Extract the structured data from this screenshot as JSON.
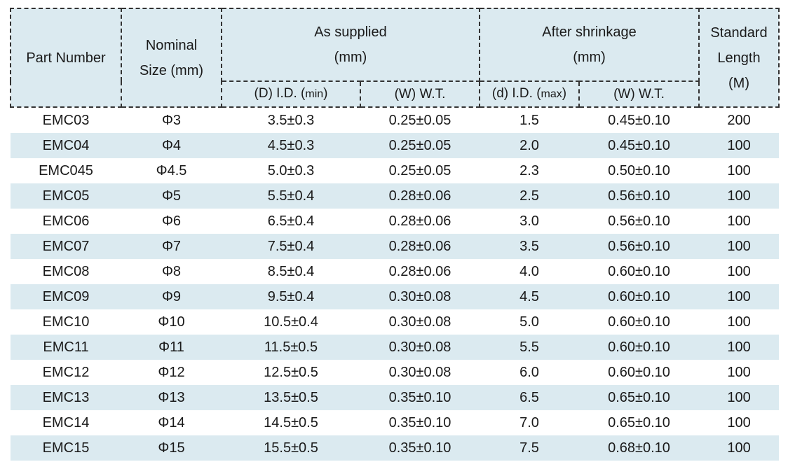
{
  "header": {
    "part_number": "Part Number",
    "nominal_size": [
      "Nominal",
      "Size (mm)"
    ],
    "as_supplied": [
      "As supplied",
      "(mm)"
    ],
    "after_shrinkage": [
      "After shrinkage",
      "(mm)"
    ],
    "standard_length": [
      "Standard",
      "Length",
      "(M)"
    ],
    "sub": {
      "supplied_id_prefix": "(D) I.D. (",
      "supplied_id_unit": "min",
      "supplied_id_suffix": ")",
      "supplied_wt": "(W) W.T.",
      "shrunk_id_prefix": "(d) I.D. (",
      "shrunk_id_unit": "max",
      "shrunk_id_suffix": ")",
      "shrunk_wt": "(W) W.T."
    }
  },
  "rows": [
    [
      "EMC03",
      "Φ3",
      "3.5±0.3",
      "0.25±0.05",
      "1.5",
      "0.45±0.10",
      "200"
    ],
    [
      "EMC04",
      "Φ4",
      "4.5±0.3",
      "0.25±0.05",
      "2.0",
      "0.45±0.10",
      "100"
    ],
    [
      "EMC045",
      "Φ4.5",
      "5.0±0.3",
      "0.25±0.05",
      "2.3",
      "0.50±0.10",
      "100"
    ],
    [
      "EMC05",
      "Φ5",
      "5.5±0.4",
      "0.28±0.06",
      "2.5",
      "0.56±0.10",
      "100"
    ],
    [
      "EMC06",
      "Φ6",
      "6.5±0.4",
      "0.28±0.06",
      "3.0",
      "0.56±0.10",
      "100"
    ],
    [
      "EMC07",
      "Φ7",
      "7.5±0.4",
      "0.28±0.06",
      "3.5",
      "0.56±0.10",
      "100"
    ],
    [
      "EMC08",
      "Φ8",
      "8.5±0.4",
      "0.28±0.06",
      "4.0",
      "0.60±0.10",
      "100"
    ],
    [
      "EMC09",
      "Φ9",
      "9.5±0.4",
      "0.30±0.08",
      "4.5",
      "0.60±0.10",
      "100"
    ],
    [
      "EMC10",
      "Φ10",
      "10.5±0.4",
      "0.30±0.08",
      "5.0",
      "0.60±0.10",
      "100"
    ],
    [
      "EMC11",
      "Φ11",
      "11.5±0.5",
      "0.30±0.08",
      "5.5",
      "0.60±0.10",
      "100"
    ],
    [
      "EMC12",
      "Φ12",
      "12.5±0.5",
      "0.30±0.08",
      "6.0",
      "0.60±0.10",
      "100"
    ],
    [
      "EMC13",
      "Φ13",
      "13.5±0.5",
      "0.35±0.10",
      "6.5",
      "0.65±0.10",
      "100"
    ],
    [
      "EMC14",
      "Φ14",
      "14.5±0.5",
      "0.35±0.10",
      "7.0",
      "0.65±0.10",
      "100"
    ],
    [
      "EMC15",
      "Φ15",
      "15.5±0.5",
      "0.35±0.10",
      "7.5",
      "0.68±0.10",
      "100"
    ]
  ],
  "colors": {
    "header_bg": "#dbeaf0",
    "stripe_bg": "#dbeaf0",
    "border": "#333333",
    "text": "#1a1a1a"
  }
}
